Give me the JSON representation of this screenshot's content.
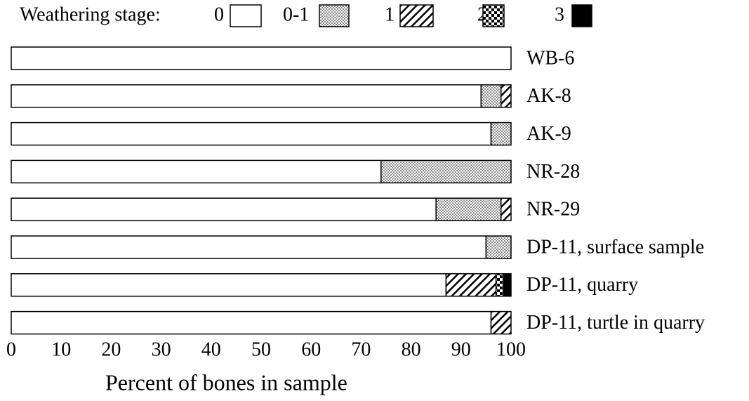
{
  "chart_data": {
    "type": "stacked-bar-horizontal",
    "legend_title": "Weathering stage:",
    "x_label": "Percent of bones in sample",
    "categories": [
      "WB-6",
      "AK-8",
      "AK-9",
      "NR-28",
      "NR-29",
      "DP-11, surface sample",
      "DP-11, quarry",
      "DP-11, turtle in quarry"
    ],
    "series": [
      {
        "name": "0",
        "fill": "white",
        "values": [
          100,
          94,
          96,
          74,
          85,
          95,
          87,
          96
        ]
      },
      {
        "name": "0-1",
        "fill": "dots",
        "values": [
          0,
          4,
          4,
          26,
          13,
          5,
          0,
          0
        ]
      },
      {
        "name": "1",
        "fill": "hatch",
        "values": [
          0,
          2,
          0,
          0,
          2,
          0,
          10,
          4
        ]
      },
      {
        "name": "2",
        "fill": "checker",
        "values": [
          0,
          0,
          0,
          0,
          0,
          0,
          1.5,
          0
        ]
      },
      {
        "name": "3",
        "fill": "solid",
        "values": [
          0,
          0,
          0,
          0,
          0,
          0,
          1.5,
          0
        ]
      }
    ],
    "xlim": [
      0,
      100
    ],
    "xticks": [
      0,
      10,
      20,
      30,
      40,
      50,
      60,
      70,
      80,
      90,
      100
    ],
    "legend": "top"
  }
}
